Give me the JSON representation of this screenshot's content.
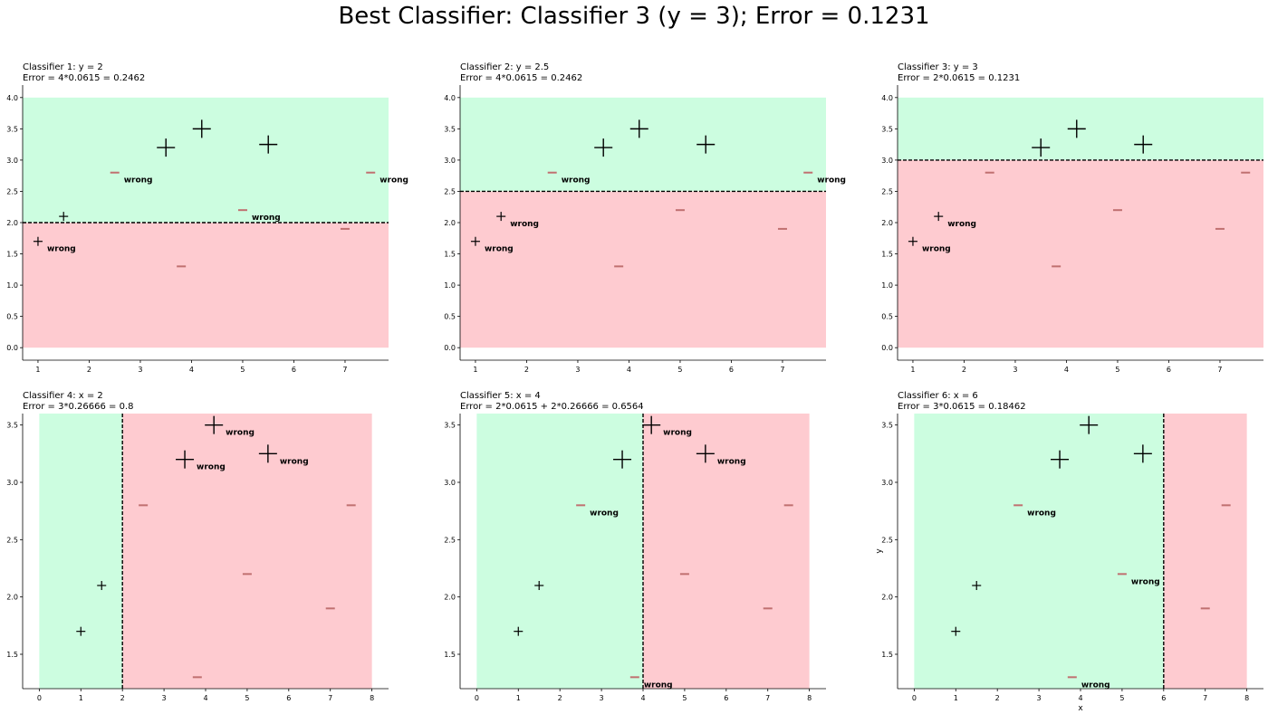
{
  "title": "Best Classifier: Classifier 3 (y = 3); Error = 0.1231",
  "colors": {
    "positive_region": "#ccfde0",
    "negative_region": "#fecbd0",
    "boundary": "#000000",
    "minus_marker": "#c07070"
  },
  "chart_data": [
    {
      "type": "scatter",
      "title": "Classifier 1: y = 2",
      "subtitle": "Error = 4*0.0615 = 0.2462",
      "xlabel": "",
      "ylabel": "",
      "xlim": [
        0.7,
        7.85
      ],
      "ylim": [
        -0.2,
        4.2
      ],
      "xticks": [
        "1",
        "2",
        "3",
        "4",
        "5",
        "6",
        "7"
      ],
      "yticks": [
        "0.0",
        "0.5",
        "1.0",
        "1.5",
        "2.0",
        "2.5",
        "3.0",
        "3.5",
        "4.0"
      ],
      "boundary": {
        "axis": "y",
        "value": 2
      },
      "regions": [
        {
          "x": [
            0.7,
            7.85
          ],
          "y": [
            2,
            4
          ],
          "label": "+"
        },
        {
          "x": [
            0.7,
            7.85
          ],
          "y": [
            0,
            2
          ],
          "label": "-"
        }
      ],
      "points": [
        {
          "x": 1.0,
          "y": 1.7,
          "label": "+",
          "size": 1,
          "annotation": "wrong"
        },
        {
          "x": 1.5,
          "y": 2.1,
          "label": "+",
          "size": 1,
          "annotation": ""
        },
        {
          "x": 2.5,
          "y": 2.8,
          "label": "-",
          "size": 1,
          "annotation": "wrong"
        },
        {
          "x": 3.5,
          "y": 3.2,
          "label": "+",
          "size": 2,
          "annotation": ""
        },
        {
          "x": 3.8,
          "y": 1.3,
          "label": "-",
          "size": 1,
          "annotation": ""
        },
        {
          "x": 4.2,
          "y": 3.5,
          "label": "+",
          "size": 2,
          "annotation": ""
        },
        {
          "x": 5.0,
          "y": 2.2,
          "label": "-",
          "size": 1,
          "annotation": "wrong"
        },
        {
          "x": 5.5,
          "y": 3.25,
          "label": "+",
          "size": 2,
          "annotation": ""
        },
        {
          "x": 7.0,
          "y": 1.9,
          "label": "-",
          "size": 1,
          "annotation": ""
        },
        {
          "x": 7.5,
          "y": 2.8,
          "label": "-",
          "size": 1,
          "annotation": "wrong"
        }
      ]
    },
    {
      "type": "scatter",
      "title": "Classifier 2: y = 2.5",
      "subtitle": "Error = 4*0.0615 = 0.2462",
      "xlabel": "",
      "ylabel": "",
      "xlim": [
        0.7,
        7.85
      ],
      "ylim": [
        -0.2,
        4.2
      ],
      "xticks": [
        "1",
        "2",
        "3",
        "4",
        "5",
        "6",
        "7"
      ],
      "yticks": [
        "0.0",
        "0.5",
        "1.0",
        "1.5",
        "2.0",
        "2.5",
        "3.0",
        "3.5",
        "4.0"
      ],
      "boundary": {
        "axis": "y",
        "value": 2.5
      },
      "regions": [
        {
          "x": [
            0.7,
            7.85
          ],
          "y": [
            2.5,
            4
          ],
          "label": "+"
        },
        {
          "x": [
            0.7,
            7.85
          ],
          "y": [
            0,
            2.5
          ],
          "label": "-"
        }
      ],
      "points": [
        {
          "x": 1.0,
          "y": 1.7,
          "label": "+",
          "size": 1,
          "annotation": "wrong"
        },
        {
          "x": 1.5,
          "y": 2.1,
          "label": "+",
          "size": 1,
          "annotation": "wrong"
        },
        {
          "x": 2.5,
          "y": 2.8,
          "label": "-",
          "size": 1,
          "annotation": "wrong"
        },
        {
          "x": 3.5,
          "y": 3.2,
          "label": "+",
          "size": 2,
          "annotation": ""
        },
        {
          "x": 3.8,
          "y": 1.3,
          "label": "-",
          "size": 1,
          "annotation": ""
        },
        {
          "x": 4.2,
          "y": 3.5,
          "label": "+",
          "size": 2,
          "annotation": ""
        },
        {
          "x": 5.0,
          "y": 2.2,
          "label": "-",
          "size": 1,
          "annotation": ""
        },
        {
          "x": 5.5,
          "y": 3.25,
          "label": "+",
          "size": 2,
          "annotation": ""
        },
        {
          "x": 7.0,
          "y": 1.9,
          "label": "-",
          "size": 1,
          "annotation": ""
        },
        {
          "x": 7.5,
          "y": 2.8,
          "label": "-",
          "size": 1,
          "annotation": "wrong"
        }
      ]
    },
    {
      "type": "scatter",
      "title": "Classifier 3: y = 3",
      "subtitle": "Error = 2*0.0615 = 0.1231",
      "xlabel": "",
      "ylabel": "",
      "xlim": [
        0.7,
        7.85
      ],
      "ylim": [
        -0.2,
        4.2
      ],
      "xticks": [
        "1",
        "2",
        "3",
        "4",
        "5",
        "6",
        "7"
      ],
      "yticks": [
        "0.0",
        "0.5",
        "1.0",
        "1.5",
        "2.0",
        "2.5",
        "3.0",
        "3.5",
        "4.0"
      ],
      "boundary": {
        "axis": "y",
        "value": 3
      },
      "regions": [
        {
          "x": [
            0.7,
            7.85
          ],
          "y": [
            3,
            4
          ],
          "label": "+"
        },
        {
          "x": [
            0.7,
            7.85
          ],
          "y": [
            0,
            3
          ],
          "label": "-"
        }
      ],
      "points": [
        {
          "x": 1.0,
          "y": 1.7,
          "label": "+",
          "size": 1,
          "annotation": "wrong"
        },
        {
          "x": 1.5,
          "y": 2.1,
          "label": "+",
          "size": 1,
          "annotation": "wrong"
        },
        {
          "x": 2.5,
          "y": 2.8,
          "label": "-",
          "size": 1,
          "annotation": ""
        },
        {
          "x": 3.5,
          "y": 3.2,
          "label": "+",
          "size": 2,
          "annotation": ""
        },
        {
          "x": 3.8,
          "y": 1.3,
          "label": "-",
          "size": 1,
          "annotation": ""
        },
        {
          "x": 4.2,
          "y": 3.5,
          "label": "+",
          "size": 2,
          "annotation": ""
        },
        {
          "x": 5.0,
          "y": 2.2,
          "label": "-",
          "size": 1,
          "annotation": ""
        },
        {
          "x": 5.5,
          "y": 3.25,
          "label": "+",
          "size": 2,
          "annotation": ""
        },
        {
          "x": 7.0,
          "y": 1.9,
          "label": "-",
          "size": 1,
          "annotation": ""
        },
        {
          "x": 7.5,
          "y": 2.8,
          "label": "-",
          "size": 1,
          "annotation": ""
        }
      ]
    },
    {
      "type": "scatter",
      "title": "Classifier 4: x = 2",
      "subtitle": "Error = 3*0.26666 = 0.8",
      "xlabel": "",
      "ylabel": "",
      "xlim": [
        -0.4,
        8.4
      ],
      "ylim": [
        1.2,
        3.6
      ],
      "xticks": [
        "0",
        "1",
        "2",
        "3",
        "4",
        "5",
        "6",
        "7",
        "8"
      ],
      "yticks": [
        "1.5",
        "2.0",
        "2.5",
        "3.0",
        "3.5"
      ],
      "boundary": {
        "axis": "x",
        "value": 2
      },
      "regions": [
        {
          "x": [
            0,
            2
          ],
          "y": [
            1.2,
            3.6
          ],
          "label": "+"
        },
        {
          "x": [
            2,
            8
          ],
          "y": [
            1.2,
            3.6
          ],
          "label": "-"
        }
      ],
      "points": [
        {
          "x": 1.0,
          "y": 1.7,
          "label": "+",
          "size": 1,
          "annotation": ""
        },
        {
          "x": 1.5,
          "y": 2.1,
          "label": "+",
          "size": 1,
          "annotation": ""
        },
        {
          "x": 2.5,
          "y": 2.8,
          "label": "-",
          "size": 1,
          "annotation": ""
        },
        {
          "x": 3.5,
          "y": 3.2,
          "label": "+",
          "size": 2,
          "annotation": "wrong"
        },
        {
          "x": 3.8,
          "y": 1.3,
          "label": "-",
          "size": 1,
          "annotation": ""
        },
        {
          "x": 4.2,
          "y": 3.5,
          "label": "+",
          "size": 2,
          "annotation": "wrong"
        },
        {
          "x": 5.0,
          "y": 2.2,
          "label": "-",
          "size": 1,
          "annotation": ""
        },
        {
          "x": 5.5,
          "y": 3.25,
          "label": "+",
          "size": 2,
          "annotation": "wrong"
        },
        {
          "x": 7.0,
          "y": 1.9,
          "label": "-",
          "size": 1,
          "annotation": ""
        },
        {
          "x": 7.5,
          "y": 2.8,
          "label": "-",
          "size": 1,
          "annotation": ""
        }
      ]
    },
    {
      "type": "scatter",
      "title": "Classifier 5: x = 4",
      "subtitle": "Error = 2*0.0615 + 2*0.26666 = 0.6564",
      "xlabel": "",
      "ylabel": "",
      "xlim": [
        -0.4,
        8.4
      ],
      "ylim": [
        1.2,
        3.6
      ],
      "xticks": [
        "0",
        "1",
        "2",
        "3",
        "4",
        "5",
        "6",
        "7",
        "8"
      ],
      "yticks": [
        "1.5",
        "2.0",
        "2.5",
        "3.0",
        "3.5"
      ],
      "boundary": {
        "axis": "x",
        "value": 4
      },
      "regions": [
        {
          "x": [
            0,
            4
          ],
          "y": [
            1.2,
            3.6
          ],
          "label": "+"
        },
        {
          "x": [
            4,
            8
          ],
          "y": [
            1.2,
            3.6
          ],
          "label": "-"
        }
      ],
      "points": [
        {
          "x": 1.0,
          "y": 1.7,
          "label": "+",
          "size": 1,
          "annotation": ""
        },
        {
          "x": 1.5,
          "y": 2.1,
          "label": "+",
          "size": 1,
          "annotation": ""
        },
        {
          "x": 2.5,
          "y": 2.8,
          "label": "-",
          "size": 1,
          "annotation": "wrong"
        },
        {
          "x": 3.5,
          "y": 3.2,
          "label": "+",
          "size": 2,
          "annotation": ""
        },
        {
          "x": 3.8,
          "y": 1.3,
          "label": "-",
          "size": 1,
          "annotation": "wrong"
        },
        {
          "x": 4.2,
          "y": 3.5,
          "label": "+",
          "size": 2,
          "annotation": "wrong"
        },
        {
          "x": 5.0,
          "y": 2.2,
          "label": "-",
          "size": 1,
          "annotation": ""
        },
        {
          "x": 5.5,
          "y": 3.25,
          "label": "+",
          "size": 2,
          "annotation": "wrong"
        },
        {
          "x": 7.0,
          "y": 1.9,
          "label": "-",
          "size": 1,
          "annotation": ""
        },
        {
          "x": 7.5,
          "y": 2.8,
          "label": "-",
          "size": 1,
          "annotation": ""
        }
      ]
    },
    {
      "type": "scatter",
      "title": "Classifier 6: x = 6",
      "subtitle": "Error = 3*0.0615 = 0.18462",
      "xlabel": "x",
      "ylabel": "y",
      "xlim": [
        -0.4,
        8.4
      ],
      "ylim": [
        1.2,
        3.6
      ],
      "xticks": [
        "0",
        "1",
        "2",
        "3",
        "4",
        "5",
        "6",
        "7",
        "8"
      ],
      "yticks": [
        "1.5",
        "2.0",
        "2.5",
        "3.0",
        "3.5"
      ],
      "boundary": {
        "axis": "x",
        "value": 6
      },
      "regions": [
        {
          "x": [
            0,
            6
          ],
          "y": [
            1.2,
            3.6
          ],
          "label": "+"
        },
        {
          "x": [
            6,
            8
          ],
          "y": [
            1.2,
            3.6
          ],
          "label": "-"
        }
      ],
      "points": [
        {
          "x": 1.0,
          "y": 1.7,
          "label": "+",
          "size": 1,
          "annotation": ""
        },
        {
          "x": 1.5,
          "y": 2.1,
          "label": "+",
          "size": 1,
          "annotation": ""
        },
        {
          "x": 2.5,
          "y": 2.8,
          "label": "-",
          "size": 1,
          "annotation": "wrong"
        },
        {
          "x": 3.5,
          "y": 3.2,
          "label": "+",
          "size": 2,
          "annotation": ""
        },
        {
          "x": 3.8,
          "y": 1.3,
          "label": "-",
          "size": 1,
          "annotation": "wrong"
        },
        {
          "x": 4.2,
          "y": 3.5,
          "label": "+",
          "size": 2,
          "annotation": ""
        },
        {
          "x": 5.0,
          "y": 2.2,
          "label": "-",
          "size": 1,
          "annotation": "wrong"
        },
        {
          "x": 5.5,
          "y": 3.25,
          "label": "+",
          "size": 2,
          "annotation": ""
        },
        {
          "x": 7.0,
          "y": 1.9,
          "label": "-",
          "size": 1,
          "annotation": ""
        },
        {
          "x": 7.5,
          "y": 2.8,
          "label": "-",
          "size": 1,
          "annotation": ""
        }
      ]
    }
  ]
}
